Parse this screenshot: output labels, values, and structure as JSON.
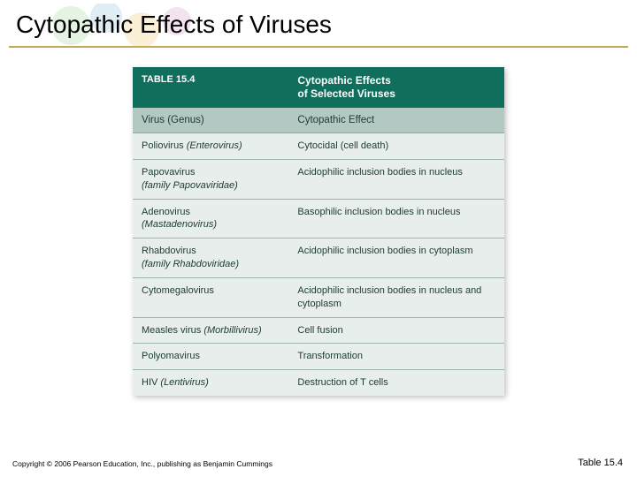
{
  "slide": {
    "title": "Cytopathic Effects of Viruses",
    "underline_color": "#bfa85a"
  },
  "table": {
    "label_number": "TABLE 15.4",
    "title_line1": "Cytopathic Effects",
    "title_line2": "of Selected Viruses",
    "header_bg": "#0f6e5c",
    "header_fg": "#ffffff",
    "subheader_bg": "#b3c7c3",
    "row_bg": "#e8eeec",
    "row_border": "#9bb3ad",
    "text_color": "#1b3a33",
    "columns": {
      "left": "Virus (Genus)",
      "right": "Cytopathic Effect"
    },
    "rows": [
      {
        "name": "Poliovirus",
        "genus": "(Enterovirus)",
        "effect": "Cytocidal (cell death)"
      },
      {
        "name": "Papovavirus",
        "genus": "(family Papovaviridae)",
        "effect": "Acidophilic inclusion bodies in nucleus"
      },
      {
        "name": "Adenovirus",
        "genus": "(Mastadenovirus)",
        "effect": "Basophilic inclusion bodies in nucleus"
      },
      {
        "name": "Rhabdovirus",
        "genus": "(family Rhabdoviridae)",
        "effect": "Acidophilic inclusion bodies in cytoplasm"
      },
      {
        "name": "Cytomegalovirus",
        "genus": "",
        "effect": "Acidophilic inclusion bodies in nucleus and cytoplasm"
      },
      {
        "name": "Measles virus",
        "genus": "(Morbillivirus)",
        "effect": "Cell fusion"
      },
      {
        "name": "Polyomavirus",
        "genus": "",
        "effect": "Transformation"
      },
      {
        "name": "HIV",
        "genus": "(Lentivirus)",
        "effect": "Destruction of T cells"
      }
    ]
  },
  "footer": {
    "left": "Copyright © 2006 Pearson Education, Inc., publishing as Benjamin Cummings",
    "right": "Table 15.4"
  }
}
